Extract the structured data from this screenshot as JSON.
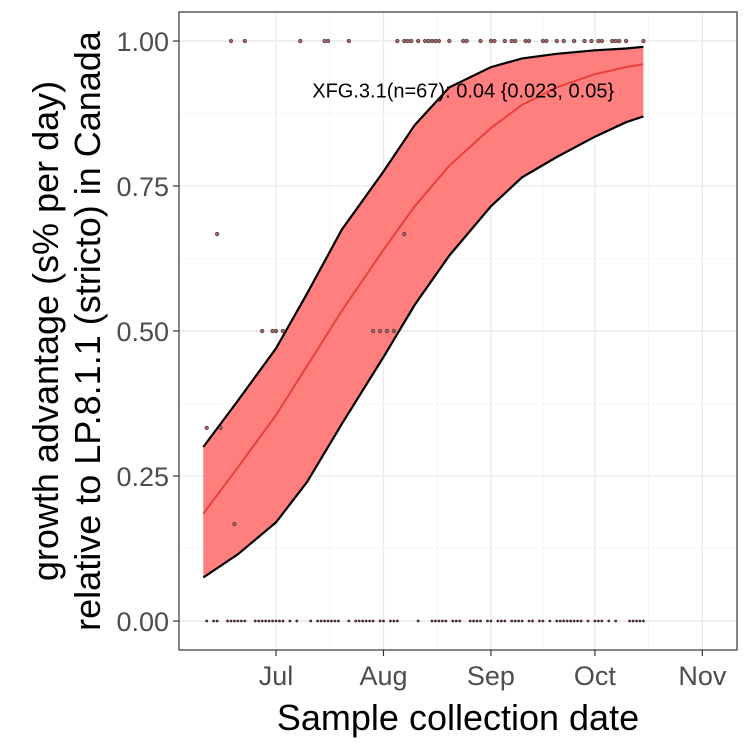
{
  "chart_data": {
    "type": "line",
    "xlabel": "Sample collection date",
    "ylabel_lines": [
      "growth advantage (s% per day)",
      "relative to LP.8.1.1 (stricto) in Canada"
    ],
    "x_ticks": [
      {
        "date": "2025-07-01",
        "label": "Jul"
      },
      {
        "date": "2025-08-01",
        "label": "Aug"
      },
      {
        "date": "2025-09-01",
        "label": "Sep"
      },
      {
        "date": "2025-10-01",
        "label": "Oct"
      },
      {
        "date": "2025-11-01",
        "label": "Nov"
      }
    ],
    "y_ticks": [
      {
        "value": 0,
        "label": "0.00"
      },
      {
        "value": 0.25,
        "label": "0.25"
      },
      {
        "value": 0.5,
        "label": "0.50"
      },
      {
        "value": 0.75,
        "label": "0.75"
      },
      {
        "value": 1,
        "label": "1.00"
      }
    ],
    "xlim": [
      "2025-06-03",
      "2025-11-11"
    ],
    "ylim": [
      -0.05,
      1.05
    ],
    "grid": true,
    "annotation": {
      "text": "XFG.3.1(n=67): 0.04 {0.023, 0.05}",
      "date": "2025-08-24",
      "value": 0.915
    },
    "colors": {
      "fit": "#e8413a",
      "ribbon": "#ff7f7f",
      "ribbon_edge": "#000000",
      "points": "#4a2a2a"
    },
    "series": [
      {
        "name": "XFG.3.1",
        "fit": {
          "dates": [
            "2025-06-10",
            "2025-06-20",
            "2025-07-01",
            "2025-07-10",
            "2025-07-20",
            "2025-08-01",
            "2025-08-10",
            "2025-08-20",
            "2025-09-01",
            "2025-09-10",
            "2025-09-20",
            "2025-10-01",
            "2025-10-10",
            "2025-10-15"
          ],
          "value": [
            0.185,
            0.265,
            0.355,
            0.44,
            0.535,
            0.64,
            0.715,
            0.785,
            0.85,
            0.89,
            0.92,
            0.943,
            0.955,
            0.96
          ],
          "lower": [
            0.075,
            0.115,
            0.17,
            0.24,
            0.34,
            0.455,
            0.545,
            0.63,
            0.715,
            0.765,
            0.8,
            0.835,
            0.86,
            0.87
          ],
          "upper": [
            0.3,
            0.38,
            0.47,
            0.565,
            0.675,
            0.775,
            0.855,
            0.92,
            0.955,
            0.97,
            0.978,
            0.984,
            0.987,
            0.99
          ]
        }
      }
    ],
    "points": [
      {
        "date": "2025-06-18",
        "value": 1
      },
      {
        "date": "2025-06-22",
        "value": 1
      },
      {
        "date": "2025-07-08",
        "value": 1
      },
      {
        "date": "2025-07-15",
        "value": 1
      },
      {
        "date": "2025-07-16",
        "value": 1
      },
      {
        "date": "2025-07-22",
        "value": 1
      },
      {
        "date": "2025-08-05",
        "value": 1
      },
      {
        "date": "2025-08-07",
        "value": 1
      },
      {
        "date": "2025-08-08",
        "value": 1
      },
      {
        "date": "2025-08-09",
        "value": 1
      },
      {
        "date": "2025-08-11",
        "value": 1
      },
      {
        "date": "2025-08-13",
        "value": 1
      },
      {
        "date": "2025-08-14",
        "value": 1
      },
      {
        "date": "2025-08-15",
        "value": 1
      },
      {
        "date": "2025-08-16",
        "value": 1
      },
      {
        "date": "2025-08-17",
        "value": 1
      },
      {
        "date": "2025-08-20",
        "value": 1
      },
      {
        "date": "2025-08-24",
        "value": 1
      },
      {
        "date": "2025-08-25",
        "value": 1
      },
      {
        "date": "2025-08-29",
        "value": 1
      },
      {
        "date": "2025-09-01",
        "value": 1
      },
      {
        "date": "2025-09-02",
        "value": 1
      },
      {
        "date": "2025-09-05",
        "value": 1
      },
      {
        "date": "2025-09-07",
        "value": 1
      },
      {
        "date": "2025-09-08",
        "value": 1
      },
      {
        "date": "2025-09-11",
        "value": 1
      },
      {
        "date": "2025-09-12",
        "value": 1
      },
      {
        "date": "2025-09-16",
        "value": 1
      },
      {
        "date": "2025-09-17",
        "value": 1
      },
      {
        "date": "2025-09-20",
        "value": 1
      },
      {
        "date": "2025-09-22",
        "value": 1
      },
      {
        "date": "2025-09-25",
        "value": 1
      },
      {
        "date": "2025-09-28",
        "value": 1
      },
      {
        "date": "2025-09-30",
        "value": 1
      },
      {
        "date": "2025-10-02",
        "value": 1
      },
      {
        "date": "2025-10-03",
        "value": 1
      },
      {
        "date": "2025-10-06",
        "value": 1
      },
      {
        "date": "2025-10-07",
        "value": 1
      },
      {
        "date": "2025-10-08",
        "value": 1
      },
      {
        "date": "2025-10-10",
        "value": 1
      },
      {
        "date": "2025-10-15",
        "value": 1
      },
      {
        "date": "2025-06-14",
        "value": 0.667
      },
      {
        "date": "2025-08-07",
        "value": 0.667
      },
      {
        "date": "2025-06-27",
        "value": 0.5
      },
      {
        "date": "2025-06-30",
        "value": 0.5
      },
      {
        "date": "2025-07-01",
        "value": 0.5
      },
      {
        "date": "2025-07-03",
        "value": 0.5
      },
      {
        "date": "2025-07-29",
        "value": 0.5
      },
      {
        "date": "2025-07-31",
        "value": 0.5
      },
      {
        "date": "2025-08-02",
        "value": 0.5
      },
      {
        "date": "2025-08-04",
        "value": 0.5
      },
      {
        "date": "2025-06-11",
        "value": 0.333
      },
      {
        "date": "2025-06-15",
        "value": 0.333
      },
      {
        "date": "2025-06-19",
        "value": 0.167
      }
    ],
    "zero_points_dates": [
      "2025-06-11",
      "2025-06-13",
      "2025-06-14",
      "2025-06-17",
      "2025-06-18",
      "2025-06-19",
      "2025-06-20",
      "2025-06-21",
      "2025-06-22",
      "2025-06-25",
      "2025-06-26",
      "2025-06-27",
      "2025-06-28",
      "2025-06-29",
      "2025-06-30",
      "2025-07-01",
      "2025-07-02",
      "2025-07-03",
      "2025-07-05",
      "2025-07-07",
      "2025-07-11",
      "2025-07-13",
      "2025-07-14",
      "2025-07-15",
      "2025-07-16",
      "2025-07-17",
      "2025-07-18",
      "2025-07-19",
      "2025-07-22",
      "2025-07-24",
      "2025-07-25",
      "2025-07-26",
      "2025-07-27",
      "2025-07-28",
      "2025-07-29",
      "2025-07-31",
      "2025-08-01",
      "2025-08-03",
      "2025-08-04",
      "2025-08-05",
      "2025-08-11",
      "2025-08-15",
      "2025-08-16",
      "2025-08-17",
      "2025-08-18",
      "2025-08-19",
      "2025-08-21",
      "2025-08-22",
      "2025-08-23",
      "2025-08-26",
      "2025-08-27",
      "2025-08-28",
      "2025-08-29",
      "2025-08-31",
      "2025-09-01",
      "2025-09-03",
      "2025-09-04",
      "2025-09-05",
      "2025-09-07",
      "2025-09-08",
      "2025-09-09",
      "2025-09-10",
      "2025-09-12",
      "2025-09-13",
      "2025-09-15",
      "2025-09-16",
      "2025-09-18",
      "2025-09-20",
      "2025-09-21",
      "2025-09-22",
      "2025-09-23",
      "2025-09-24",
      "2025-09-25",
      "2025-09-26",
      "2025-09-27",
      "2025-09-29",
      "2025-10-01",
      "2025-10-02",
      "2025-10-03",
      "2025-10-05",
      "2025-10-07",
      "2025-10-11",
      "2025-10-12",
      "2025-10-13",
      "2025-10-14",
      "2025-10-15"
    ]
  }
}
